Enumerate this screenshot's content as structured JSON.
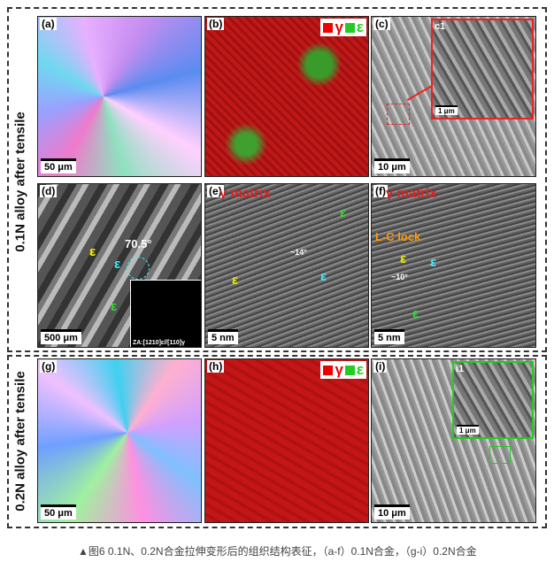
{
  "row_labels": [
    "0.1N alloy after tensile",
    "0.2N alloy after tensile"
  ],
  "panels": [
    {
      "label": "(a)",
      "scale_bar": "50 μm"
    },
    {
      "label": "(b)",
      "legend": [
        "γ",
        "ε"
      ]
    },
    {
      "label": "(c)",
      "scale_bar": "10 μm",
      "inset": {
        "label": "c1",
        "scale_bar": "1 μm"
      }
    },
    {
      "label": "(d)",
      "scale_bar": "500 μm",
      "annotations": [
        "ε",
        "ε",
        "ε",
        "70.5°"
      ],
      "diffraction": "ZA:[1210]ε//[110]γ"
    },
    {
      "label": "(e)",
      "scale_bar": "5 nm",
      "title": "γ matrix",
      "annotations": [
        "ε",
        "ε",
        "ε",
        "~14°"
      ]
    },
    {
      "label": "(f)",
      "scale_bar": "5 nm",
      "title": "γ matrix",
      "annotations": [
        "L-C lock",
        "ε",
        "ε",
        "ε",
        "~10°"
      ]
    },
    {
      "label": "(g)",
      "scale_bar": "50 μm"
    },
    {
      "label": "(h)",
      "legend": [
        "γ",
        "ε"
      ]
    },
    {
      "label": "(i)",
      "scale_bar": "10 μm",
      "inset": {
        "label": "i1",
        "scale_bar": "1 μm"
      }
    }
  ],
  "caption": "▲图6  0.1N、0.2N合金拉伸变形后的组织结构表征，（a-f）0.1N合金，（g-i）0.2N合金"
}
